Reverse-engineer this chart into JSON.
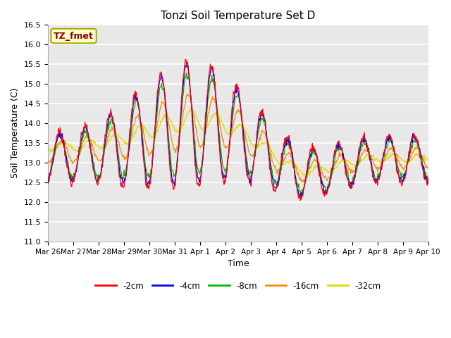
{
  "title": "Tonzi Soil Temperature Set D",
  "xlabel": "Time",
  "ylabel": "Soil Temperature (C)",
  "ylim": [
    11.0,
    16.5
  ],
  "legend_label": "TZ_fmet",
  "series_labels": [
    "-2cm",
    "-4cm",
    "-8cm",
    "-16cm",
    "-32cm"
  ],
  "series_colors": [
    "#ff0000",
    "#0000ff",
    "#00bb00",
    "#ff8800",
    "#dddd00"
  ],
  "plot_bg_color": "#e8e8e8",
  "tick_dates": [
    "Mar 26",
    "Mar 27",
    "Mar 28",
    "Mar 29",
    "Mar 30",
    "Mar 31",
    "Apr 1",
    "Apr 2",
    "Apr 3",
    "Apr 4",
    "Apr 5",
    "Apr 6",
    "Apr 7",
    "Apr 8",
    "Apr 9",
    "Apr 10"
  ],
  "num_points": 720,
  "figsize": [
    6.4,
    4.8
  ],
  "dpi": 100
}
